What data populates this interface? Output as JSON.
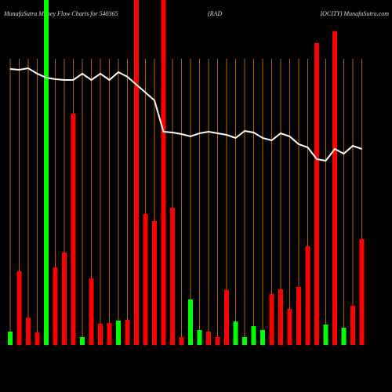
{
  "chart_data": {
    "type": "bar",
    "title_parts": [
      "MunafaSutra  Money Flow  Charts for 540365",
      "(RAD",
      "IOCITY) MunafaSutra.com"
    ],
    "categories": [
      null,
      null,
      null,
      null,
      null,
      null,
      null,
      null,
      null,
      null,
      null,
      null,
      null,
      null,
      null,
      null,
      null,
      null,
      null,
      null,
      null,
      null,
      null,
      null,
      null,
      null,
      null,
      null,
      null,
      null,
      null,
      null,
      null,
      null,
      null,
      null,
      null,
      null,
      null,
      null
    ],
    "values": [
      17,
      94,
      35,
      16,
      440,
      99,
      118,
      295,
      10,
      85,
      27,
      28,
      31,
      32,
      440,
      167,
      158,
      440,
      175,
      10,
      58,
      19,
      17,
      10,
      70,
      30,
      10,
      24,
      19,
      65,
      71,
      46,
      74,
      126,
      385,
      26,
      400,
      22,
      50,
      135
    ],
    "colors": [
      "#00ff00",
      "#ff0000",
      "#ff0000",
      "#ff0000",
      "#00ff00",
      "#ff0000",
      "#ff0000",
      "#ff0000",
      "#00ff00",
      "#ff0000",
      "#ff0000",
      "#ff0000",
      "#00ff00",
      "#ff0000",
      "#ff0000",
      "#ff0000",
      "#ff0000",
      "#ff0000",
      "#ff0000",
      "#ff0000",
      "#00ff00",
      "#00ff00",
      "#ff0000",
      "#ff0000",
      "#ff0000",
      "#00ff00",
      "#00ff00",
      "#00ff00",
      "#00ff00",
      "#ff0000",
      "#ff0000",
      "#ff0000",
      "#ff0000",
      "#ff0000",
      "#ff0000",
      "#00ff00",
      "#ff0000",
      "#00ff00",
      "#ff0000",
      "#ff0000"
    ],
    "line_values": [
      352,
      351,
      353,
      346,
      341,
      339,
      338,
      338,
      346,
      338,
      346,
      338,
      348,
      342,
      332,
      322,
      312,
      272,
      271,
      269,
      266,
      270,
      272,
      270,
      268,
      264,
      273,
      271,
      264,
      261,
      270,
      266,
      256,
      252,
      237,
      235,
      250,
      244,
      254,
      250
    ],
    "line_color": "#ffffff",
    "ylim": [
      0,
      440
    ]
  }
}
